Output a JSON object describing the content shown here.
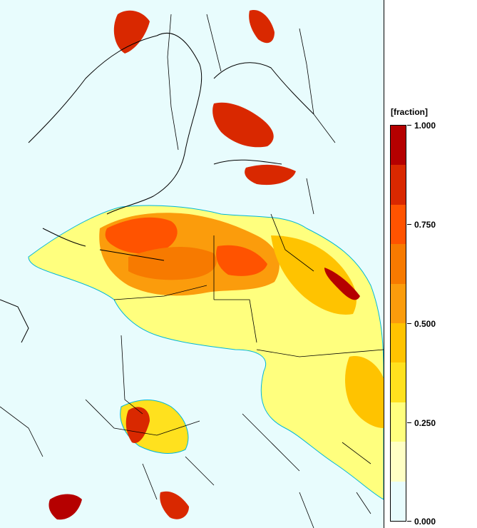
{
  "legend": {
    "title": "[fraction]",
    "labels": [
      "1.000",
      "0.750",
      "0.500",
      "0.250",
      "0.000"
    ],
    "colors": [
      "#b50000",
      "#d92800",
      "#ff5300",
      "#f77a00",
      "#fb9c0c",
      "#ffc300",
      "#ffe11e",
      "#ffff7e",
      "#ffffc4",
      "#e8fcfd"
    ]
  },
  "map": {
    "background_color": "#e8fcfd",
    "contour_color": "#00b8d8",
    "border_color": "#000000"
  }
}
